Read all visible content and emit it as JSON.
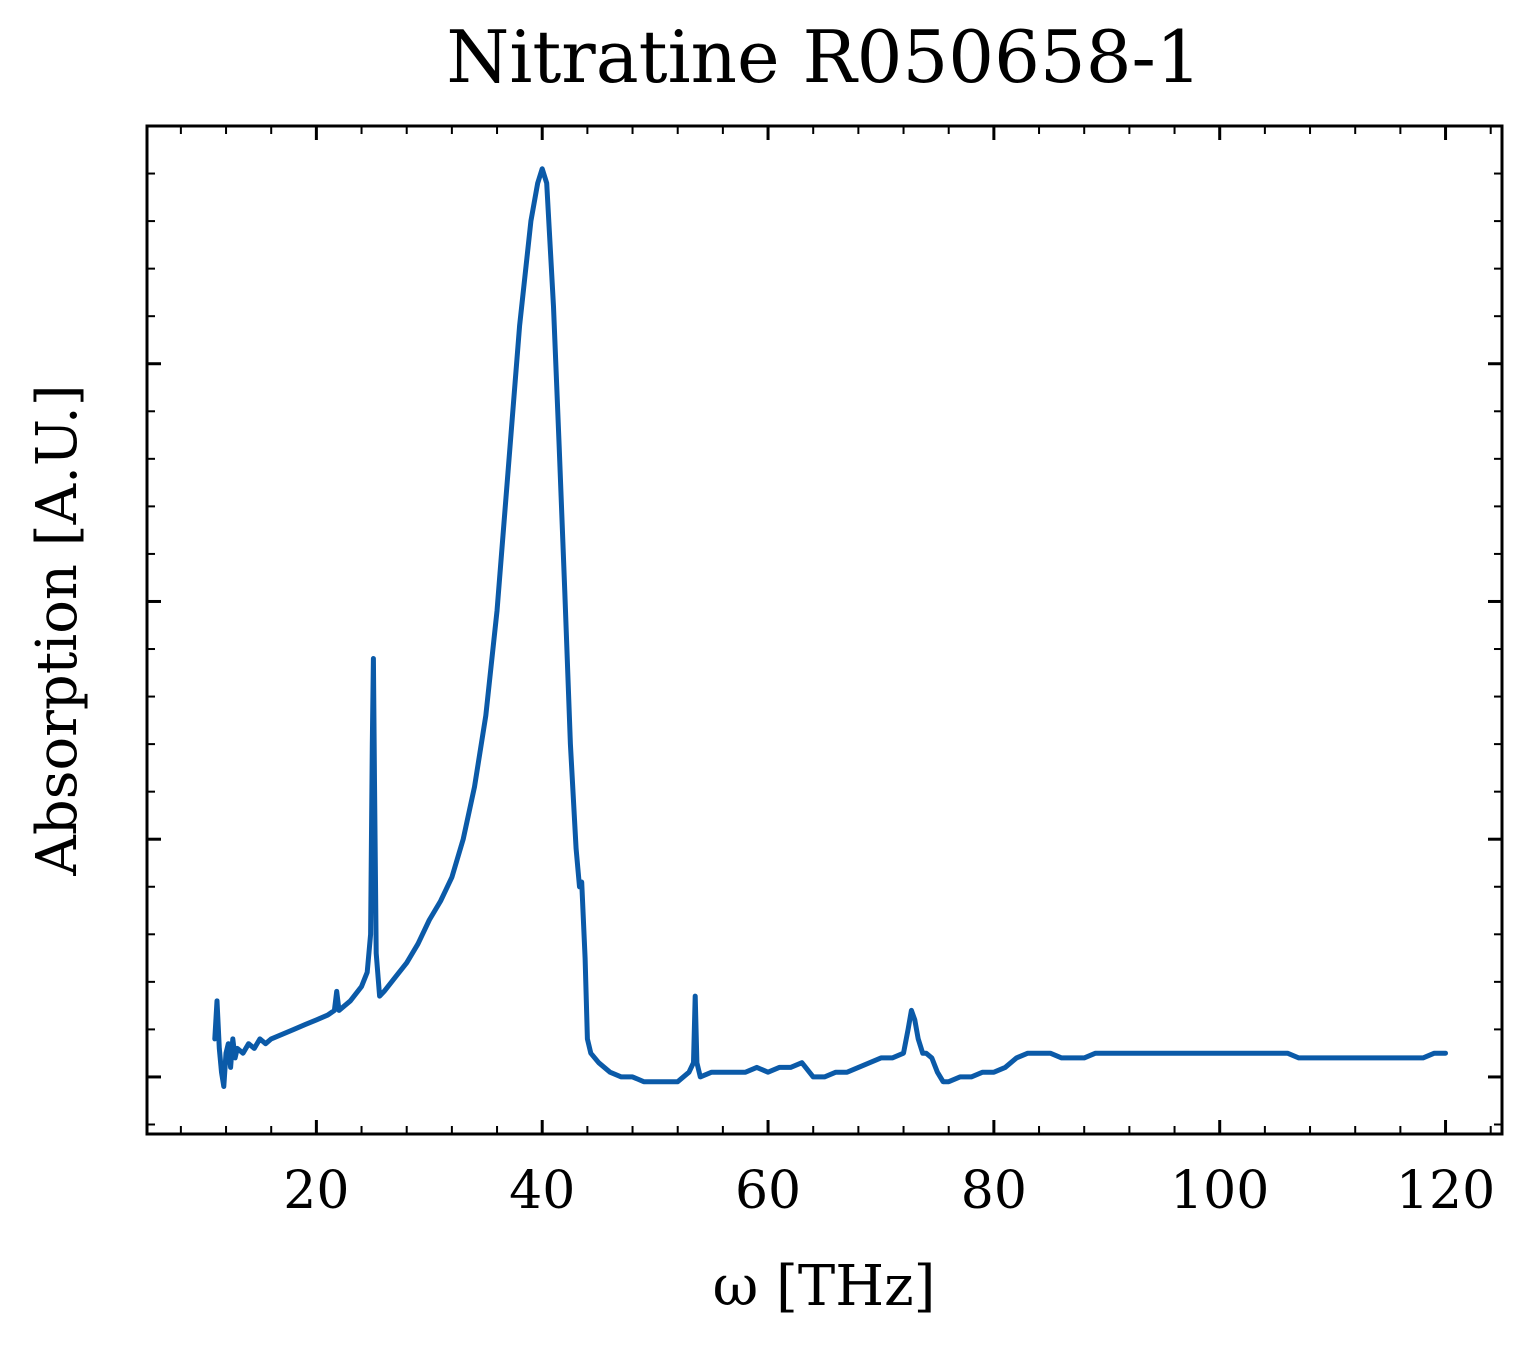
{
  "chart_data": {
    "type": "line",
    "title": "Nitratine R050658-1",
    "xlabel": "ω [THz]",
    "ylabel": "Absorption [A.U.]",
    "xlim": [
      5,
      125
    ],
    "ylim": [
      -0.12,
      2.0
    ],
    "xticks": [
      20,
      40,
      60,
      80,
      100,
      120
    ],
    "xtick_labels": [
      "20",
      "40",
      "60",
      "80",
      "100",
      "120"
    ],
    "x_minor_step": 4,
    "yticks": [
      0,
      0.5,
      1.0,
      1.5
    ],
    "y_minor_step": 0.1,
    "ytick_labels_shown": false,
    "grid": false,
    "legend": "none",
    "series_color": "#0b5aa8",
    "series": [
      {
        "points": [
          [
            11.0,
            0.08
          ],
          [
            11.2,
            0.16
          ],
          [
            11.4,
            0.06
          ],
          [
            11.6,
            0.01
          ],
          [
            11.8,
            -0.02
          ],
          [
            12.0,
            0.05
          ],
          [
            12.2,
            0.07
          ],
          [
            12.4,
            0.02
          ],
          [
            12.6,
            0.08
          ],
          [
            12.8,
            0.04
          ],
          [
            13.0,
            0.06
          ],
          [
            13.5,
            0.05
          ],
          [
            14.0,
            0.07
          ],
          [
            14.5,
            0.06
          ],
          [
            15.0,
            0.08
          ],
          [
            15.5,
            0.07
          ],
          [
            16.0,
            0.08
          ],
          [
            17.0,
            0.09
          ],
          [
            18.0,
            0.1
          ],
          [
            19.0,
            0.11
          ],
          [
            20.0,
            0.12
          ],
          [
            21.0,
            0.13
          ],
          [
            21.6,
            0.14
          ],
          [
            21.8,
            0.18
          ],
          [
            22.0,
            0.14
          ],
          [
            23.0,
            0.16
          ],
          [
            24.0,
            0.19
          ],
          [
            24.5,
            0.22
          ],
          [
            24.8,
            0.3
          ],
          [
            24.95,
            0.7
          ],
          [
            25.05,
            0.88
          ],
          [
            25.15,
            0.62
          ],
          [
            25.3,
            0.26
          ],
          [
            25.6,
            0.17
          ],
          [
            26.0,
            0.18
          ],
          [
            27.0,
            0.21
          ],
          [
            28.0,
            0.24
          ],
          [
            29.0,
            0.28
          ],
          [
            30.0,
            0.33
          ],
          [
            31.0,
            0.37
          ],
          [
            32.0,
            0.42
          ],
          [
            33.0,
            0.5
          ],
          [
            34.0,
            0.61
          ],
          [
            35.0,
            0.76
          ],
          [
            36.0,
            0.98
          ],
          [
            37.0,
            1.28
          ],
          [
            38.0,
            1.58
          ],
          [
            39.0,
            1.8
          ],
          [
            39.6,
            1.88
          ],
          [
            40.0,
            1.91
          ],
          [
            40.4,
            1.88
          ],
          [
            41.0,
            1.62
          ],
          [
            41.5,
            1.33
          ],
          [
            42.0,
            1.02
          ],
          [
            42.5,
            0.7
          ],
          [
            43.0,
            0.48
          ],
          [
            43.3,
            0.4
          ],
          [
            43.5,
            0.41
          ],
          [
            43.8,
            0.25
          ],
          [
            44.0,
            0.08
          ],
          [
            44.3,
            0.05
          ],
          [
            45.0,
            0.03
          ],
          [
            46.0,
            0.01
          ],
          [
            47.0,
            0.0
          ],
          [
            48.0,
            0.0
          ],
          [
            49.0,
            -0.01
          ],
          [
            50.0,
            -0.01
          ],
          [
            51.0,
            -0.01
          ],
          [
            52.0,
            -0.01
          ],
          [
            53.0,
            0.01
          ],
          [
            53.4,
            0.03
          ],
          [
            53.55,
            0.17
          ],
          [
            53.7,
            0.03
          ],
          [
            54.0,
            0.0
          ],
          [
            55.0,
            0.01
          ],
          [
            56.0,
            0.01
          ],
          [
            57.0,
            0.01
          ],
          [
            58.0,
            0.01
          ],
          [
            59.0,
            0.02
          ],
          [
            60.0,
            0.01
          ],
          [
            61.0,
            0.02
          ],
          [
            62.0,
            0.02
          ],
          [
            63.0,
            0.03
          ],
          [
            64.0,
            0.0
          ],
          [
            65.0,
            0.0
          ],
          [
            66.0,
            0.01
          ],
          [
            67.0,
            0.01
          ],
          [
            68.0,
            0.02
          ],
          [
            69.0,
            0.03
          ],
          [
            70.0,
            0.04
          ],
          [
            71.0,
            0.04
          ],
          [
            72.0,
            0.05
          ],
          [
            72.4,
            0.1
          ],
          [
            72.7,
            0.14
          ],
          [
            73.0,
            0.12
          ],
          [
            73.3,
            0.08
          ],
          [
            73.7,
            0.05
          ],
          [
            74.0,
            0.05
          ],
          [
            74.5,
            0.04
          ],
          [
            75.0,
            0.01
          ],
          [
            75.5,
            -0.01
          ],
          [
            76.0,
            -0.01
          ],
          [
            77.0,
            0.0
          ],
          [
            78.0,
            0.0
          ],
          [
            79.0,
            0.01
          ],
          [
            80.0,
            0.01
          ],
          [
            81.0,
            0.02
          ],
          [
            82.0,
            0.04
          ],
          [
            83.0,
            0.05
          ],
          [
            84.0,
            0.05
          ],
          [
            85.0,
            0.05
          ],
          [
            86.0,
            0.04
          ],
          [
            87.0,
            0.04
          ],
          [
            88.0,
            0.04
          ],
          [
            89.0,
            0.05
          ],
          [
            90.0,
            0.05
          ],
          [
            91.0,
            0.05
          ],
          [
            92.0,
            0.05
          ],
          [
            93.0,
            0.05
          ],
          [
            94.0,
            0.05
          ],
          [
            95.0,
            0.05
          ],
          [
            96.0,
            0.05
          ],
          [
            97.0,
            0.05
          ],
          [
            98.0,
            0.05
          ],
          [
            99.0,
            0.05
          ],
          [
            100.0,
            0.05
          ],
          [
            101.0,
            0.05
          ],
          [
            102.0,
            0.05
          ],
          [
            103.0,
            0.05
          ],
          [
            104.0,
            0.05
          ],
          [
            105.0,
            0.05
          ],
          [
            106.0,
            0.05
          ],
          [
            107.0,
            0.04
          ],
          [
            108.0,
            0.04
          ],
          [
            109.0,
            0.04
          ],
          [
            110.0,
            0.04
          ],
          [
            111.0,
            0.04
          ],
          [
            112.0,
            0.04
          ],
          [
            113.0,
            0.04
          ],
          [
            114.0,
            0.04
          ],
          [
            115.0,
            0.04
          ],
          [
            116.0,
            0.04
          ],
          [
            117.0,
            0.04
          ],
          [
            118.0,
            0.04
          ],
          [
            119.0,
            0.05
          ],
          [
            120.0,
            0.05
          ]
        ]
      }
    ]
  }
}
